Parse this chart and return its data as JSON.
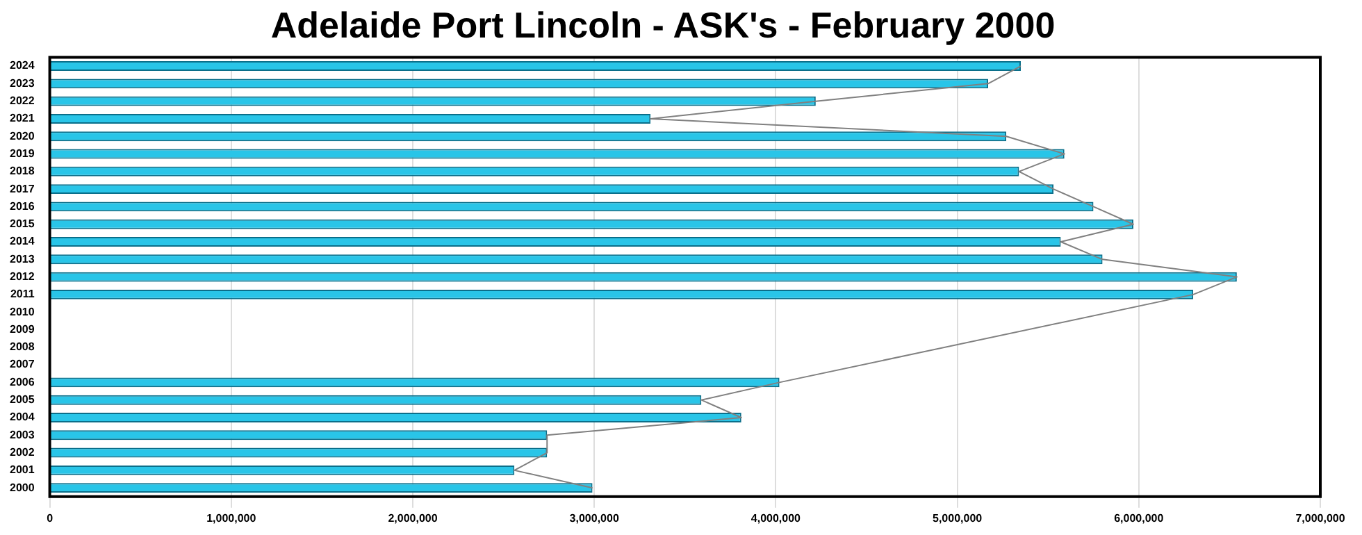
{
  "chart_data": {
    "type": "bar",
    "orientation": "horizontal",
    "title": "Adelaide Port Lincoln - ASK's - February 2000",
    "categories": [
      "2024",
      "2023",
      "2022",
      "2021",
      "2020",
      "2019",
      "2018",
      "2017",
      "2016",
      "2015",
      "2014",
      "2013",
      "2012",
      "2011",
      "2010",
      "2009",
      "2008",
      "2007",
      "2006",
      "2005",
      "2004",
      "2003",
      "2002",
      "2001",
      "2000"
    ],
    "series": [
      {
        "color": "#29c5e8",
        "values": [
          5350000,
          5170000,
          4220000,
          3310000,
          5270000,
          5590000,
          5340000,
          5530000,
          5750000,
          5970000,
          5570000,
          5800000,
          6540000,
          6300000,
          null,
          null,
          null,
          null,
          4020000,
          3590000,
          3810000,
          2740000,
          2740000,
          2560000,
          2990000
        ]
      },
      {
        "type": "line",
        "color": "#808080",
        "marker": "none",
        "values": [
          5350000,
          5170000,
          4220000,
          3310000,
          5270000,
          5590000,
          5340000,
          5530000,
          5750000,
          5970000,
          5570000,
          5800000,
          6540000,
          6300000,
          null,
          null,
          null,
          null,
          4020000,
          3590000,
          3810000,
          2740000,
          2740000,
          2560000,
          2990000
        ]
      }
    ],
    "xlim": [
      0,
      7000000
    ],
    "xticks": [
      0,
      {
        "value": 1000000,
        "label": "1,000,000"
      },
      {
        "value": 2000000,
        "label": "2,000,000"
      },
      {
        "value": 3000000,
        "label": "3,000,000"
      },
      {
        "value": 4000000,
        "label": "4,000,000"
      },
      {
        "value": 5000000,
        "label": "5,000,000"
      },
      {
        "value": 6000000,
        "label": "6,000,000"
      },
      {
        "value": 7000000,
        "label": "7,000,000"
      }
    ],
    "grid": "x",
    "legend": false
  }
}
